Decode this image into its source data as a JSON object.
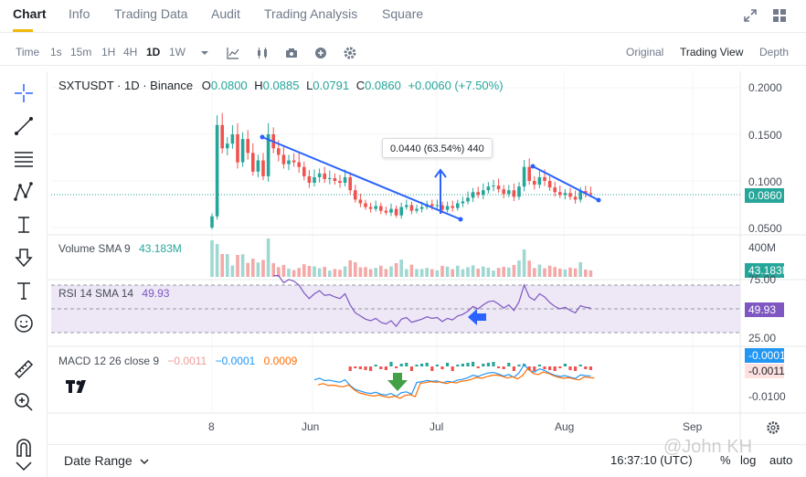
{
  "tabs": [
    {
      "label": "Chart",
      "active": true
    },
    {
      "label": "Info",
      "active": false
    },
    {
      "label": "Trading Data",
      "active": false
    },
    {
      "label": "Audit",
      "active": false
    },
    {
      "label": "Trading Analysis",
      "active": false
    },
    {
      "label": "Square",
      "active": false
    }
  ],
  "toolbar": {
    "time_label": "Time",
    "intervals": [
      "1s",
      "15m",
      "1H",
      "4H",
      "1D",
      "1W"
    ],
    "active_interval": "1D",
    "view_options": [
      "Original",
      "Trading View",
      "Depth"
    ],
    "active_view": "Trading View"
  },
  "legend": {
    "symbol": "SXTUSDT · 1D · Binance",
    "open_key": "O",
    "open": "0.0800",
    "high_key": "H",
    "high": "0.0885",
    "low_key": "L",
    "low": "0.0791",
    "close_key": "C",
    "close": "0.0860",
    "change": "+0.0060 (+7.50%)"
  },
  "volume_legend": {
    "label": "Volume SMA 9",
    "value": "43.183M"
  },
  "rsi_legend": {
    "label": "RSI 14 SMA 14",
    "value": "49.93"
  },
  "macd_legend": {
    "label": "MACD 12 26 close 9",
    "hist": "−0.0011",
    "macd": "−0.0001",
    "signal": "0.0009"
  },
  "price_axis": [
    "0.2000",
    "0.1500",
    "0.1000",
    "0.0500"
  ],
  "price_tag": "0.0860",
  "volume_axis": "400M",
  "volume_tag": "43.183M",
  "rsi_axis": [
    "75.00",
    "25.00"
  ],
  "rsi_tag": "49.93",
  "macd_axis": "-0.0100",
  "macd_tags": [
    "-0.0001",
    "-0.0011"
  ],
  "time_axis": [
    "8",
    "Jun",
    "Jul",
    "Aug",
    "Sep"
  ],
  "measure_tooltip": "0.0440 (63.54%) 440",
  "bottom": {
    "date_range": "Date Range",
    "clock": "16:37:10 (UTC)",
    "percent": "%",
    "log": "log",
    "auto": "auto"
  },
  "watermark": "@John KH",
  "colors": {
    "up": "#26a69a",
    "down": "#ef5350",
    "accent": "#f0b90b",
    "trendline": "#2962ff",
    "rsi_line": "#7e57c2",
    "macd_line": "#2196f3",
    "signal_line": "#ff6d00"
  },
  "chart_data": {
    "type": "candlestick",
    "symbol": "SXTUSDT",
    "interval": "1D",
    "price_axis_range": [
      0.035,
      0.21
    ],
    "closes": [
      0.062,
      0.16,
      0.135,
      0.14,
      0.15,
      0.12,
      0.145,
      0.13,
      0.11,
      0.122,
      0.105,
      0.15,
      0.135,
      0.128,
      0.118,
      0.122,
      0.12,
      0.115,
      0.105,
      0.098,
      0.104,
      0.108,
      0.102,
      0.103,
      0.1,
      0.098,
      0.104,
      0.09,
      0.08,
      0.076,
      0.072,
      0.07,
      0.073,
      0.068,
      0.066,
      0.07,
      0.063,
      0.072,
      0.074,
      0.068,
      0.07,
      0.072,
      0.075,
      0.073,
      0.074,
      0.069,
      0.073,
      0.071,
      0.076,
      0.078,
      0.082,
      0.088,
      0.085,
      0.09,
      0.094,
      0.095,
      0.091,
      0.086,
      0.09,
      0.083,
      0.094,
      0.115,
      0.1,
      0.096,
      0.104,
      0.1,
      0.093,
      0.088,
      0.085,
      0.087,
      0.083,
      0.08,
      0.089,
      0.087,
      0.086
    ]
  }
}
